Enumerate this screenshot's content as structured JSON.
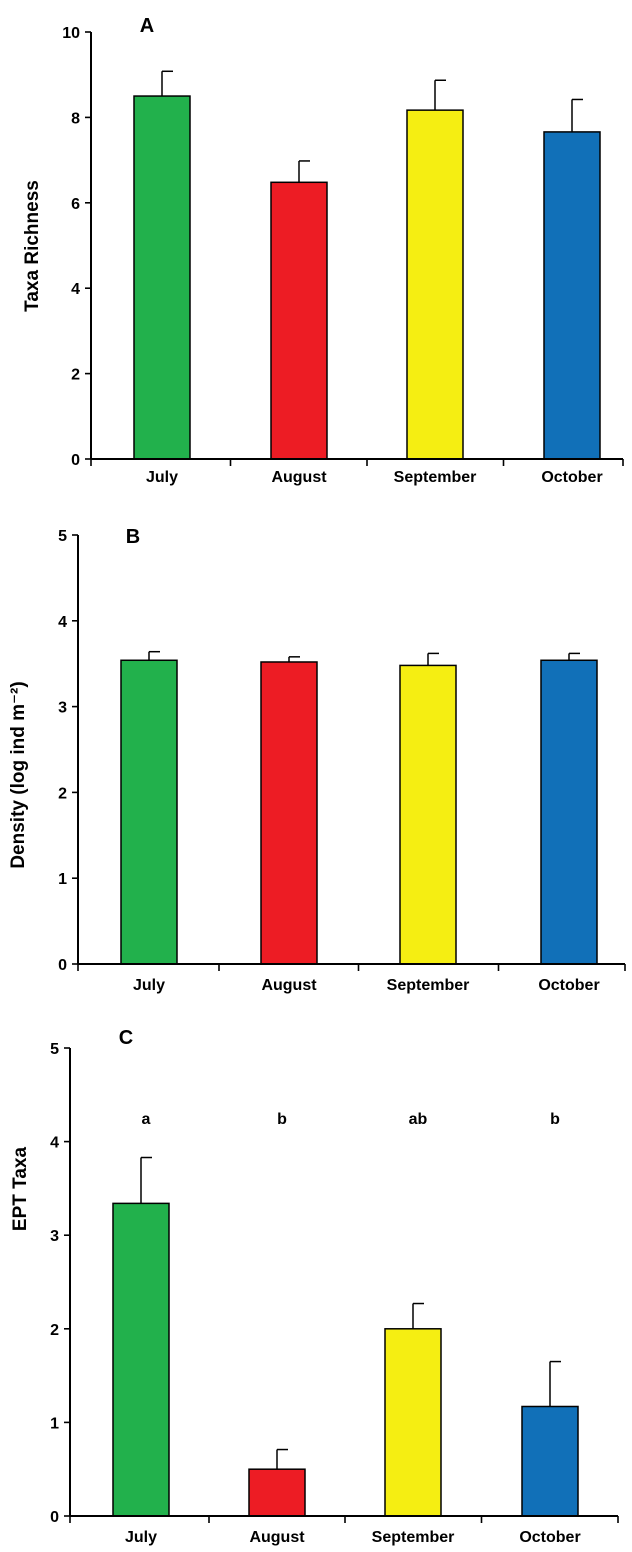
{
  "chart_data": [
    {
      "type": "bar",
      "panel_label": "A",
      "title": "",
      "xlabel": "",
      "ylabel": "Taxa Richness",
      "categories": [
        "July",
        "August",
        "September",
        "October"
      ],
      "values": [
        8.5,
        6.48,
        8.17,
        7.66
      ],
      "error": [
        0.58,
        0.5,
        0.7,
        0.76
      ],
      "colors": [
        "#22b14c",
        "#ed1c24",
        "#f5ee12",
        "#1170b8"
      ],
      "ylim": [
        0,
        10
      ],
      "yticks": [
        0,
        2,
        4,
        6,
        8,
        10
      ],
      "grid": false,
      "legend": "none"
    },
    {
      "type": "bar",
      "panel_label": "B",
      "title": "",
      "xlabel": "",
      "ylabel": "Density  (log ind m⁻²)",
      "categories": [
        "July",
        "August",
        "September",
        "October"
      ],
      "values": [
        3.54,
        3.52,
        3.48,
        3.54
      ],
      "error": [
        0.1,
        0.06,
        0.14,
        0.08
      ],
      "colors": [
        "#22b14c",
        "#ed1c24",
        "#f5ee12",
        "#1170b8"
      ],
      "ylim": [
        0,
        5
      ],
      "yticks": [
        0,
        1,
        2,
        3,
        4,
        5
      ],
      "grid": false,
      "legend": "none"
    },
    {
      "type": "bar",
      "panel_label": "C",
      "title": "",
      "xlabel": "",
      "ylabel": "EPT Taxa",
      "categories": [
        "July",
        "August",
        "September",
        "October"
      ],
      "values": [
        3.34,
        0.5,
        2.0,
        1.17
      ],
      "error": [
        0.49,
        0.21,
        0.27,
        0.48
      ],
      "significance": [
        "a",
        "b",
        "ab",
        "b"
      ],
      "colors": [
        "#22b14c",
        "#ed1c24",
        "#f5ee12",
        "#1170b8"
      ],
      "ylim": [
        0,
        5
      ],
      "yticks": [
        0,
        1,
        2,
        3,
        4,
        5
      ],
      "grid": false,
      "legend": "none"
    }
  ]
}
